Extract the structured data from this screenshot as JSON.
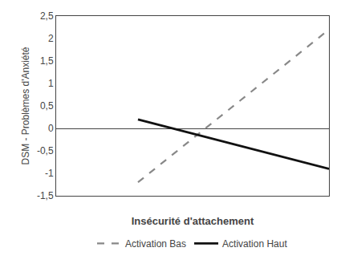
{
  "chart_data": {
    "type": "line",
    "xlabel": "Insécurité d'attachement",
    "ylabel": "DSM - Problèmes d'Anxiété",
    "xlim": [
      0,
      1
    ],
    "xticks": [],
    "ylim": [
      -1.5,
      2.5
    ],
    "yticks": [
      {
        "value": -1.5,
        "label": "-1,5"
      },
      -1,
      {
        "value": -0.5,
        "label": "-0,5"
      },
      0,
      {
        "value": 0.5,
        "label": "0,5"
      },
      1,
      {
        "value": 1.5,
        "label": "1,5"
      },
      2,
      {
        "value": 2.5,
        "label": "2,5"
      }
    ],
    "tick_labels": "y",
    "grid": false,
    "legend": "bottom",
    "series": [
      {
        "name": "Activation Bas",
        "color": "#888888",
        "line_style": "dashed",
        "x": [
          0.3,
          1.0
        ],
        "values": [
          -1.2,
          2.2
        ]
      },
      {
        "name": "Activation Haut",
        "color": "#111111",
        "line_style": "solid",
        "x": [
          0.3,
          1.0
        ],
        "values": [
          0.2,
          -0.9
        ]
      }
    ]
  }
}
